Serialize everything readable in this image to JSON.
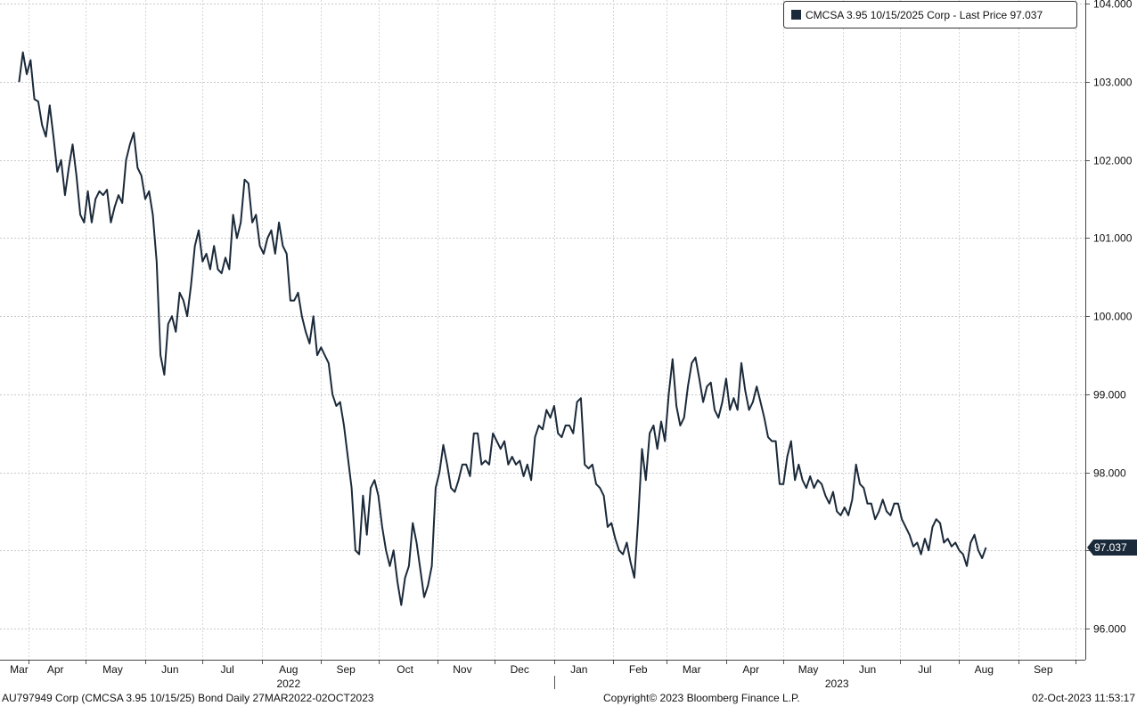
{
  "chart_data": {
    "type": "line",
    "legend": {
      "label": "CMCSA 3.95 10/15/2025 Corp - Last Price 97.037",
      "position": "top-right",
      "swatch_color": "#1b2a3a"
    },
    "last_price_label": "97.037",
    "last_price": 97.037,
    "line_color": "#1b2a3a",
    "ylim": [
      95.6,
      104.05
    ],
    "grid": true,
    "y_ticks": [
      "96.000",
      "97.000",
      "98.000",
      "99.000",
      "100.000",
      "101.000",
      "102.000",
      "103.000",
      "104.000"
    ],
    "x_months": [
      {
        "label": "Mar",
        "date": "2022-03-27"
      },
      {
        "label": "Apr",
        "date": "2022-04-15"
      },
      {
        "label": "May",
        "date": "2022-05-15"
      },
      {
        "label": "Jun",
        "date": "2022-06-14"
      },
      {
        "label": "Jul",
        "date": "2022-07-14"
      },
      {
        "label": "Aug",
        "date": "2022-08-15"
      },
      {
        "label": "Sep",
        "date": "2022-09-14"
      },
      {
        "label": "Oct",
        "date": "2022-10-15"
      },
      {
        "label": "Nov",
        "date": "2022-11-14"
      },
      {
        "label": "Dec",
        "date": "2022-12-14"
      },
      {
        "label": "Jan",
        "date": "2023-01-14"
      },
      {
        "label": "Feb",
        "date": "2023-02-14"
      },
      {
        "label": "Mar",
        "date": "2023-03-14"
      },
      {
        "label": "Apr",
        "date": "2023-04-14"
      },
      {
        "label": "May",
        "date": "2023-05-14"
      },
      {
        "label": "Jun",
        "date": "2023-06-14"
      },
      {
        "label": "Jul",
        "date": "2023-07-14"
      },
      {
        "label": "Aug",
        "date": "2023-08-14"
      },
      {
        "label": "Sep",
        "date": "2023-09-14"
      }
    ],
    "year_labels": [
      {
        "label": "2022",
        "date": "2022-08-15"
      },
      {
        "label": "2023",
        "date": "2023-05-29"
      }
    ],
    "points": [
      [
        "2022-03-27",
        103.0
      ],
      [
        "2022-03-29",
        103.38
      ],
      [
        "2022-03-31",
        103.1
      ],
      [
        "2022-04-02",
        103.28
      ],
      [
        "2022-04-04",
        102.78
      ],
      [
        "2022-04-06",
        102.75
      ],
      [
        "2022-04-08",
        102.45
      ],
      [
        "2022-04-10",
        102.3
      ],
      [
        "2022-04-12",
        102.7
      ],
      [
        "2022-04-14",
        102.3
      ],
      [
        "2022-04-16",
        101.85
      ],
      [
        "2022-04-18",
        102.0
      ],
      [
        "2022-04-20",
        101.55
      ],
      [
        "2022-04-22",
        101.9
      ],
      [
        "2022-04-24",
        102.2
      ],
      [
        "2022-04-26",
        101.8
      ],
      [
        "2022-04-28",
        101.3
      ],
      [
        "2022-04-30",
        101.2
      ],
      [
        "2022-05-02",
        101.6
      ],
      [
        "2022-05-04",
        101.2
      ],
      [
        "2022-05-06",
        101.5
      ],
      [
        "2022-05-08",
        101.6
      ],
      [
        "2022-05-10",
        101.55
      ],
      [
        "2022-05-12",
        101.62
      ],
      [
        "2022-05-14",
        101.2
      ],
      [
        "2022-05-16",
        101.4
      ],
      [
        "2022-05-18",
        101.55
      ],
      [
        "2022-05-20",
        101.45
      ],
      [
        "2022-05-22",
        102.0
      ],
      [
        "2022-05-24",
        102.2
      ],
      [
        "2022-05-26",
        102.35
      ],
      [
        "2022-05-28",
        101.9
      ],
      [
        "2022-05-30",
        101.8
      ],
      [
        "2022-06-01",
        101.5
      ],
      [
        "2022-06-03",
        101.6
      ],
      [
        "2022-06-05",
        101.3
      ],
      [
        "2022-06-07",
        100.7
      ],
      [
        "2022-06-09",
        99.5
      ],
      [
        "2022-06-11",
        99.25
      ],
      [
        "2022-06-13",
        99.9
      ],
      [
        "2022-06-15",
        100.0
      ],
      [
        "2022-06-17",
        99.8
      ],
      [
        "2022-06-19",
        100.3
      ],
      [
        "2022-06-21",
        100.2
      ],
      [
        "2022-06-23",
        100.0
      ],
      [
        "2022-06-25",
        100.4
      ],
      [
        "2022-06-27",
        100.9
      ],
      [
        "2022-06-29",
        101.1
      ],
      [
        "2022-07-01",
        100.7
      ],
      [
        "2022-07-03",
        100.8
      ],
      [
        "2022-07-05",
        100.6
      ],
      [
        "2022-07-07",
        100.9
      ],
      [
        "2022-07-09",
        100.6
      ],
      [
        "2022-07-11",
        100.55
      ],
      [
        "2022-07-13",
        100.75
      ],
      [
        "2022-07-15",
        100.6
      ],
      [
        "2022-07-17",
        101.3
      ],
      [
        "2022-07-19",
        101.0
      ],
      [
        "2022-07-21",
        101.2
      ],
      [
        "2022-07-23",
        101.75
      ],
      [
        "2022-07-25",
        101.7
      ],
      [
        "2022-07-27",
        101.2
      ],
      [
        "2022-07-29",
        101.3
      ],
      [
        "2022-07-31",
        100.9
      ],
      [
        "2022-08-02",
        100.8
      ],
      [
        "2022-08-04",
        101.0
      ],
      [
        "2022-08-06",
        101.1
      ],
      [
        "2022-08-08",
        100.8
      ],
      [
        "2022-08-10",
        101.2
      ],
      [
        "2022-08-12",
        100.9
      ],
      [
        "2022-08-14",
        100.8
      ],
      [
        "2022-08-16",
        100.2
      ],
      [
        "2022-08-18",
        100.2
      ],
      [
        "2022-08-20",
        100.3
      ],
      [
        "2022-08-22",
        100.0
      ],
      [
        "2022-08-24",
        99.8
      ],
      [
        "2022-08-26",
        99.65
      ],
      [
        "2022-08-28",
        100.0
      ],
      [
        "2022-08-30",
        99.5
      ],
      [
        "2022-09-01",
        99.6
      ],
      [
        "2022-09-03",
        99.5
      ],
      [
        "2022-09-05",
        99.4
      ],
      [
        "2022-09-07",
        99.0
      ],
      [
        "2022-09-09",
        98.85
      ],
      [
        "2022-09-11",
        98.9
      ],
      [
        "2022-09-13",
        98.6
      ],
      [
        "2022-09-15",
        98.2
      ],
      [
        "2022-09-17",
        97.8
      ],
      [
        "2022-09-19",
        97.0
      ],
      [
        "2022-09-21",
        96.95
      ],
      [
        "2022-09-23",
        97.7
      ],
      [
        "2022-09-25",
        97.2
      ],
      [
        "2022-09-27",
        97.8
      ],
      [
        "2022-09-29",
        97.9
      ],
      [
        "2022-10-01",
        97.7
      ],
      [
        "2022-10-03",
        97.3
      ],
      [
        "2022-10-05",
        97.0
      ],
      [
        "2022-10-07",
        96.8
      ],
      [
        "2022-10-09",
        97.0
      ],
      [
        "2022-10-11",
        96.6
      ],
      [
        "2022-10-13",
        96.3
      ],
      [
        "2022-10-15",
        96.65
      ],
      [
        "2022-10-17",
        96.8
      ],
      [
        "2022-10-19",
        97.35
      ],
      [
        "2022-10-21",
        97.1
      ],
      [
        "2022-10-23",
        96.75
      ],
      [
        "2022-10-25",
        96.4
      ],
      [
        "2022-10-27",
        96.55
      ],
      [
        "2022-10-29",
        96.8
      ],
      [
        "2022-10-31",
        97.8
      ],
      [
        "2022-11-02",
        98.0
      ],
      [
        "2022-11-04",
        98.35
      ],
      [
        "2022-11-06",
        98.1
      ],
      [
        "2022-11-08",
        97.8
      ],
      [
        "2022-11-10",
        97.75
      ],
      [
        "2022-11-12",
        97.9
      ],
      [
        "2022-11-14",
        98.1
      ],
      [
        "2022-11-16",
        98.1
      ],
      [
        "2022-11-18",
        97.95
      ],
      [
        "2022-11-20",
        98.5
      ],
      [
        "2022-11-22",
        98.5
      ],
      [
        "2022-11-24",
        98.1
      ],
      [
        "2022-11-26",
        98.15
      ],
      [
        "2022-11-28",
        98.1
      ],
      [
        "2022-11-30",
        98.5
      ],
      [
        "2022-12-02",
        98.4
      ],
      [
        "2022-12-04",
        98.3
      ],
      [
        "2022-12-06",
        98.4
      ],
      [
        "2022-12-08",
        98.1
      ],
      [
        "2022-12-10",
        98.2
      ],
      [
        "2022-12-12",
        98.1
      ],
      [
        "2022-12-14",
        98.15
      ],
      [
        "2022-12-16",
        97.95
      ],
      [
        "2022-12-18",
        98.1
      ],
      [
        "2022-12-20",
        97.9
      ],
      [
        "2022-12-22",
        98.45
      ],
      [
        "2022-12-24",
        98.6
      ],
      [
        "2022-12-26",
        98.55
      ],
      [
        "2022-12-28",
        98.8
      ],
      [
        "2022-12-30",
        98.7
      ],
      [
        "2023-01-01",
        98.85
      ],
      [
        "2023-01-03",
        98.5
      ],
      [
        "2023-01-05",
        98.45
      ],
      [
        "2023-01-07",
        98.6
      ],
      [
        "2023-01-09",
        98.6
      ],
      [
        "2023-01-11",
        98.5
      ],
      [
        "2023-01-13",
        98.9
      ],
      [
        "2023-01-15",
        98.95
      ],
      [
        "2023-01-17",
        98.1
      ],
      [
        "2023-01-19",
        98.05
      ],
      [
        "2023-01-21",
        98.1
      ],
      [
        "2023-01-23",
        97.85
      ],
      [
        "2023-01-25",
        97.8
      ],
      [
        "2023-01-27",
        97.7
      ],
      [
        "2023-01-29",
        97.3
      ],
      [
        "2023-01-31",
        97.35
      ],
      [
        "2023-02-02",
        97.15
      ],
      [
        "2023-02-04",
        97.0
      ],
      [
        "2023-02-06",
        96.95
      ],
      [
        "2023-02-08",
        97.1
      ],
      [
        "2023-02-10",
        96.85
      ],
      [
        "2023-02-12",
        96.65
      ],
      [
        "2023-02-14",
        97.4
      ],
      [
        "2023-02-16",
        98.3
      ],
      [
        "2023-02-18",
        97.9
      ],
      [
        "2023-02-20",
        98.5
      ],
      [
        "2023-02-22",
        98.6
      ],
      [
        "2023-02-24",
        98.3
      ],
      [
        "2023-02-26",
        98.65
      ],
      [
        "2023-02-28",
        98.4
      ],
      [
        "2023-03-02",
        99.0
      ],
      [
        "2023-03-04",
        99.45
      ],
      [
        "2023-03-06",
        98.85
      ],
      [
        "2023-03-08",
        98.6
      ],
      [
        "2023-03-10",
        98.7
      ],
      [
        "2023-03-12",
        99.1
      ],
      [
        "2023-03-14",
        99.4
      ],
      [
        "2023-03-16",
        99.47
      ],
      [
        "2023-03-18",
        99.2
      ],
      [
        "2023-03-20",
        98.9
      ],
      [
        "2023-03-22",
        99.1
      ],
      [
        "2023-03-24",
        99.15
      ],
      [
        "2023-03-26",
        98.8
      ],
      [
        "2023-03-28",
        98.7
      ],
      [
        "2023-03-30",
        98.9
      ],
      [
        "2023-04-01",
        99.2
      ],
      [
        "2023-04-03",
        98.8
      ],
      [
        "2023-04-05",
        98.95
      ],
      [
        "2023-04-07",
        98.8
      ],
      [
        "2023-04-09",
        99.4
      ],
      [
        "2023-04-11",
        99.05
      ],
      [
        "2023-04-13",
        98.8
      ],
      [
        "2023-04-15",
        98.9
      ],
      [
        "2023-04-17",
        99.1
      ],
      [
        "2023-04-19",
        98.9
      ],
      [
        "2023-04-21",
        98.7
      ],
      [
        "2023-04-23",
        98.45
      ],
      [
        "2023-04-25",
        98.4
      ],
      [
        "2023-04-27",
        98.4
      ],
      [
        "2023-04-29",
        97.85
      ],
      [
        "2023-05-01",
        97.85
      ],
      [
        "2023-05-03",
        98.2
      ],
      [
        "2023-05-05",
        98.4
      ],
      [
        "2023-05-07",
        97.9
      ],
      [
        "2023-05-09",
        98.1
      ],
      [
        "2023-05-11",
        97.9
      ],
      [
        "2023-05-13",
        97.8
      ],
      [
        "2023-05-15",
        97.95
      ],
      [
        "2023-05-17",
        97.8
      ],
      [
        "2023-05-19",
        97.9
      ],
      [
        "2023-05-21",
        97.85
      ],
      [
        "2023-05-23",
        97.7
      ],
      [
        "2023-05-25",
        97.6
      ],
      [
        "2023-05-27",
        97.75
      ],
      [
        "2023-05-29",
        97.5
      ],
      [
        "2023-05-31",
        97.45
      ],
      [
        "2023-06-02",
        97.55
      ],
      [
        "2023-06-04",
        97.45
      ],
      [
        "2023-06-06",
        97.65
      ],
      [
        "2023-06-08",
        98.1
      ],
      [
        "2023-06-10",
        97.85
      ],
      [
        "2023-06-12",
        97.8
      ],
      [
        "2023-06-14",
        97.6
      ],
      [
        "2023-06-16",
        97.6
      ],
      [
        "2023-06-18",
        97.4
      ],
      [
        "2023-06-20",
        97.5
      ],
      [
        "2023-06-22",
        97.65
      ],
      [
        "2023-06-24",
        97.5
      ],
      [
        "2023-06-26",
        97.45
      ],
      [
        "2023-06-28",
        97.6
      ],
      [
        "2023-06-30",
        97.6
      ],
      [
        "2023-07-02",
        97.4
      ],
      [
        "2023-07-04",
        97.3
      ],
      [
        "2023-07-06",
        97.2
      ],
      [
        "2023-07-08",
        97.05
      ],
      [
        "2023-07-10",
        97.1
      ],
      [
        "2023-07-12",
        96.95
      ],
      [
        "2023-07-14",
        97.15
      ],
      [
        "2023-07-16",
        97.0
      ],
      [
        "2023-07-18",
        97.3
      ],
      [
        "2023-07-20",
        97.4
      ],
      [
        "2023-07-22",
        97.35
      ],
      [
        "2023-07-24",
        97.1
      ],
      [
        "2023-07-26",
        97.15
      ],
      [
        "2023-07-28",
        97.05
      ],
      [
        "2023-07-30",
        97.1
      ],
      [
        "2023-08-01",
        97.0
      ],
      [
        "2023-08-03",
        96.95
      ],
      [
        "2023-08-05",
        96.8
      ],
      [
        "2023-08-07",
        97.1
      ],
      [
        "2023-08-09",
        97.2
      ],
      [
        "2023-08-11",
        97.0
      ],
      [
        "2023-08-13",
        96.9
      ],
      [
        "2023-08-15",
        97.037
      ]
    ]
  },
  "footer": {
    "left": "AU797949 Corp (CMCSA 3.95 10/15/25) Bond  Daily 27MAR2022-02OCT2023",
    "center": "Copyright© 2023 Bloomberg Finance L.P.",
    "right": "02-Oct-2023 11:53:17"
  }
}
